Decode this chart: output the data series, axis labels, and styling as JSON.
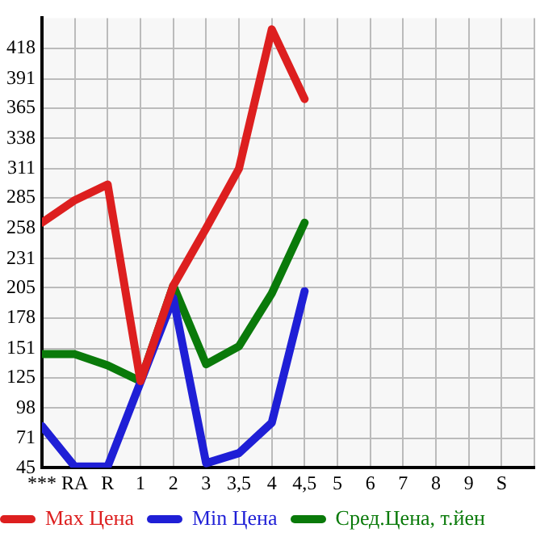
{
  "chart_data": {
    "type": "line",
    "categories": [
      "***",
      "RA",
      "R",
      "1",
      "2",
      "3",
      "3,5",
      "4",
      "4,5",
      "5",
      "6",
      "7",
      "8",
      "9",
      "S"
    ],
    "series": [
      {
        "name": "Max Цена",
        "color": "#dd1f1f",
        "values": [
          263,
          283,
          297,
          122,
          207,
          258,
          311,
          435,
          373,
          null,
          null,
          null,
          null,
          null,
          null
        ]
      },
      {
        "name": "Min Цена",
        "color": "#1f1fd6",
        "values": [
          82,
          46,
          46,
          121,
          196,
          49,
          58,
          85,
          202,
          null,
          null,
          null,
          null,
          null,
          null
        ]
      },
      {
        "name": "Сред.Цена, т.йен",
        "color": "#0a7a0a",
        "values": [
          146,
          146,
          136,
          122,
          207,
          137,
          153,
          200,
          263,
          null,
          null,
          null,
          null,
          null,
          null
        ]
      }
    ],
    "ylim": [
      45,
      445
    ],
    "yticks": [
      45,
      71,
      98,
      125,
      151,
      178,
      205,
      231,
      258,
      285,
      311,
      338,
      365,
      391,
      418
    ],
    "grid": true,
    "legend": "bottom",
    "marker": "none",
    "line_style": "solid"
  }
}
